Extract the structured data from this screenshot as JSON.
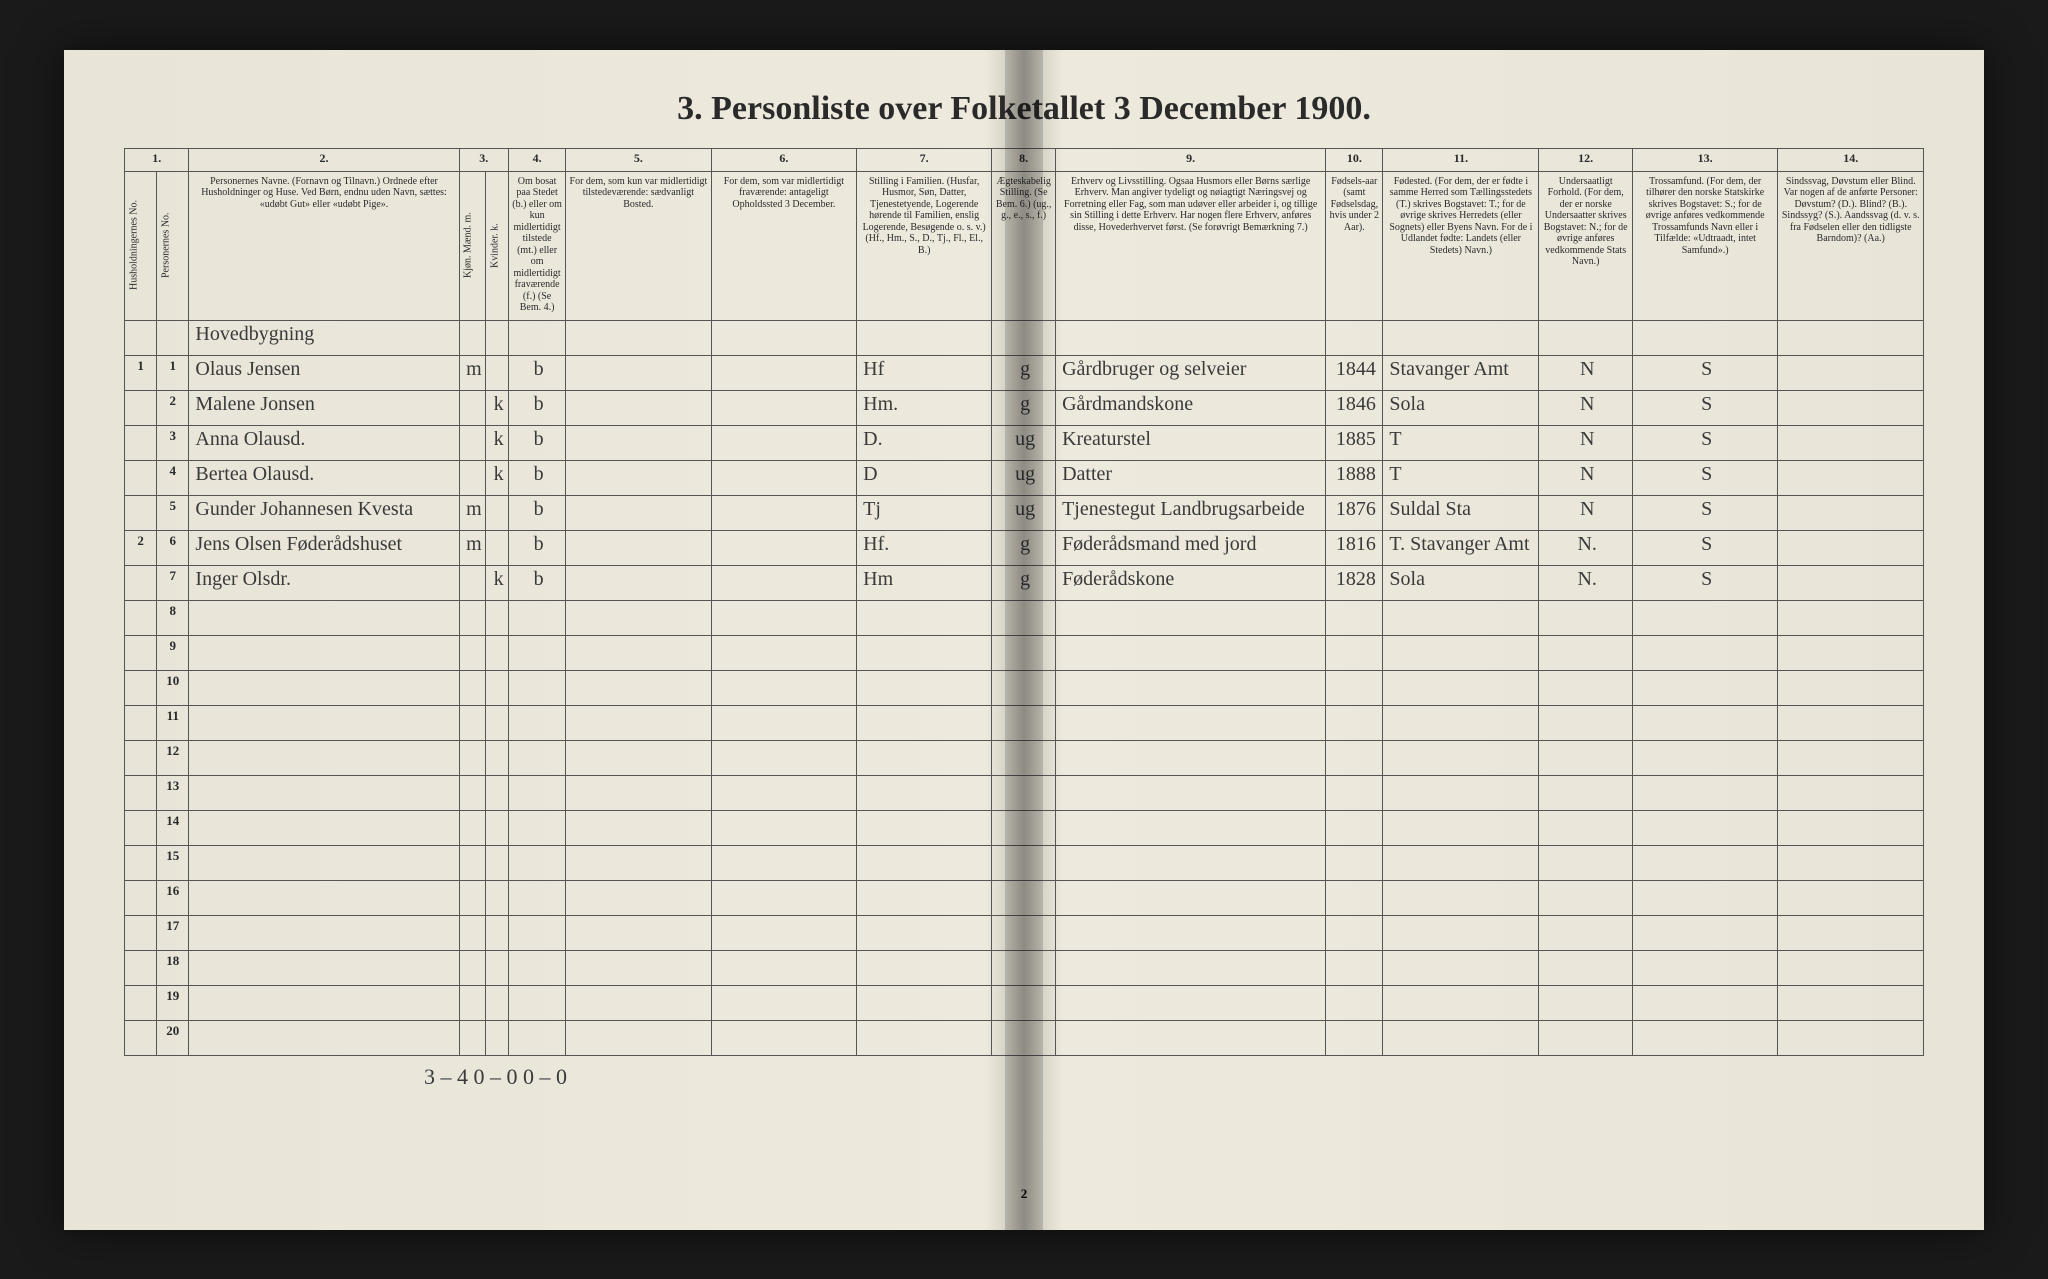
{
  "title": "3. Personliste over Folketallet 3 December 1900.",
  "columns": {
    "nums": [
      "1.",
      "2.",
      "3.",
      "4.",
      "5.",
      "6.",
      "7.",
      "8.",
      "9.",
      "10.",
      "11.",
      "12.",
      "13.",
      "14."
    ],
    "headers": [
      "Husholdningernes No.",
      "Personernes No.",
      "Personernes Navne.\n(Fornavn og Tilnavn.)\nOrdnede efter Husholdninger og Huse.\nVed Børn, endnu uden Navn, sættes: «udøbt Gut» eller «udøbt Pige».",
      "Kjøn.\nMænd. m.",
      "Kvinder. k.",
      "Om bosat paa Stedet (b.) eller om kun midlertidigt tilstede (mt.) eller om midlertidigt fraværende (f.)\n(Se Bem. 4.)",
      "For dem, som kun var midlertidigt tilstedeværende:\nsædvanligt Bosted.",
      "For dem, som var midlertidigt fraværende:\nantageligt Opholdssted 3 December.",
      "Stilling i Familien.\n(Husfar, Husmor, Søn, Datter, Tjenestetyende, Logerende hørende til Familien, enslig Logerende, Besøgende o. s. v.)\n(Hf., Hm., S., D., Tj., Fl., El., B.)",
      "Ægteskabelig Stilling.\n(Se Bem. 6.)\n(ug., g., e., s., f.)",
      "Erhverv og Livsstilling.\nOgsaa Husmors eller Børns særlige Erhverv. Man angiver tydeligt og nøiagtigt Næringsvej og Forretning eller Fag, som man udøver eller arbeider i, og tillige sin Stilling i dette Erhverv. Har nogen flere Erhverv, anføres disse, Hovederhvervet først.\n(Se forøvrigt Bemærkning 7.)",
      "Fødsels-aar\n(samt Fødselsdag, hvis under 2 Aar).",
      "Fødested.\n(For dem, der er fødte i samme Herred som Tællingsstedets (T.) skrives Bogstavet: T.; for de øvrige skrives Herredets (eller Sognets) eller Byens Navn. For de i Udlandet fødte: Landets (eller Stedets) Navn.)",
      "Undersaatligt Forhold.\n(For dem, der er norske Undersaatter skrives Bogstavet: N.; for de øvrige anføres vedkommende Stats Navn.)",
      "Trossamfund.\n(For dem, der tilhører den norske Statskirke skrives Bogstavet: S.; for de øvrige anføres vedkommende Trossamfunds Navn eller i Tilfælde: «Udtraadt, intet Samfund».)",
      "Sindssvag, Døvstum eller Blind.\nVar nogen af de anførte Personer: Døvstum? (D.). Blind? (B.). Sindssyg? (S.). Aandssvag (d. v. s. fra Fødselen eller den tidligste Barndom)? (Aa.)"
    ]
  },
  "heading_note": "Hovedbygning",
  "rows": [
    {
      "hh": "1",
      "pn": "1",
      "name": "Olaus Jensen",
      "m": "m",
      "k": "",
      "res": "b",
      "col5": "",
      "col6": "",
      "fam": "Hf",
      "mar": "g",
      "occ": "Gårdbruger og selveier",
      "year": "1844",
      "birthplace": "Stavanger Amt",
      "nat": "N",
      "rel": "S",
      "col14": ""
    },
    {
      "hh": "",
      "pn": "2",
      "name": "Malene Jonsen",
      "m": "",
      "k": "k",
      "res": "b",
      "col5": "",
      "col6": "",
      "fam": "Hm.",
      "mar": "g",
      "occ": "Gårdmandskone",
      "year": "1846",
      "birthplace": "Sola",
      "nat": "N",
      "rel": "S",
      "col14": ""
    },
    {
      "hh": "",
      "pn": "3",
      "name": "Anna Olausd.",
      "m": "",
      "k": "k",
      "res": "b",
      "col5": "",
      "col6": "",
      "fam": "D.",
      "mar": "ug",
      "occ": "Kreaturstel",
      "year": "1885",
      "birthplace": "T",
      "nat": "N",
      "rel": "S",
      "col14": ""
    },
    {
      "hh": "",
      "pn": "4",
      "name": "Bertea Olausd.",
      "m": "",
      "k": "k",
      "res": "b",
      "col5": "",
      "col6": "",
      "fam": "D",
      "mar": "ug",
      "occ": "Datter",
      "year": "1888",
      "birthplace": "T",
      "nat": "N",
      "rel": "S",
      "col14": ""
    },
    {
      "hh": "",
      "pn": "5",
      "name": "Gunder Johannesen Kvesta",
      "m": "m",
      "k": "",
      "res": "b",
      "col5": "",
      "col6": "",
      "fam": "Tj",
      "mar": "ug",
      "occ": "Tjenestegut Landbrugsarbeide",
      "year": "1876",
      "birthplace": "Suldal Sta",
      "nat": "N",
      "rel": "S",
      "col14": ""
    },
    {
      "hh": "2",
      "pn": "6",
      "name": "Jens Olsen  Føderådshuset",
      "m": "m",
      "k": "",
      "res": "b",
      "col5": "",
      "col6": "",
      "fam": "Hf.",
      "mar": "g",
      "occ": "Føderådsmand med jord",
      "year": "1816",
      "birthplace": "T. Stavanger Amt",
      "nat": "N.",
      "rel": "S",
      "col14": ""
    },
    {
      "hh": "",
      "pn": "7",
      "name": "Inger Olsdr.",
      "m": "",
      "k": "k",
      "res": "b",
      "col5": "",
      "col6": "",
      "fam": "Hm",
      "mar": "g",
      "occ": "Føderådskone",
      "year": "1828",
      "birthplace": "Sola",
      "nat": "N.",
      "rel": "S",
      "col14": ""
    }
  ],
  "empty_rows": [
    "8",
    "9",
    "10",
    "11",
    "12",
    "13",
    "14",
    "15",
    "16",
    "17",
    "18",
    "19",
    "20"
  ],
  "footer_tally": "3 – 4    0 – 0    0 – 0",
  "page_num": "2",
  "col_widths": [
    "22",
    "22",
    "260",
    "22",
    "22",
    "55",
    "140",
    "140",
    "130",
    "55",
    "260",
    "55",
    "140",
    "90",
    "140",
    "140"
  ],
  "colors": {
    "paper": "#ede9dd",
    "ink": "#2a2a2a",
    "handwriting": "#3a3a3a",
    "border": "#555"
  }
}
